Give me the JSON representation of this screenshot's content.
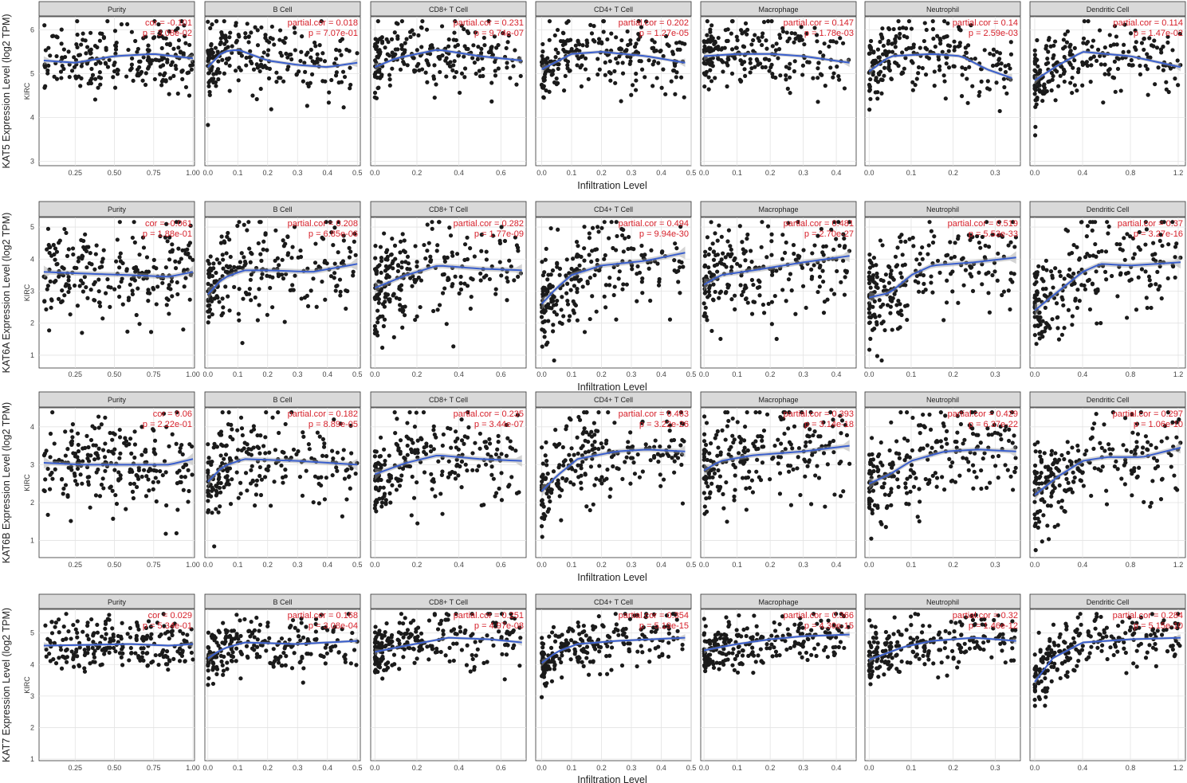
{
  "chart_data": {
    "type": "scatter",
    "cancer_label": "KIRC",
    "xlabel": "Infiltration Level",
    "panel_titles": [
      "Purity",
      "B Cell",
      "CD8+ T Cell",
      "CD4+ T Cell",
      "Macrophage",
      "Neutrophil",
      "Dendritic Cell"
    ],
    "x_ticks": [
      {
        "ticks": [
          0.25,
          0.5,
          0.75,
          1.0
        ],
        "labels": [
          "0.25",
          "0.50",
          "0.75",
          "1.00"
        ],
        "xlim": [
          0.02,
          1.01
        ]
      },
      {
        "ticks": [
          0.0,
          0.1,
          0.2,
          0.3,
          0.4,
          0.5
        ],
        "labels": [
          "0.0",
          "0.1",
          "0.2",
          "0.3",
          "0.4",
          "0.5"
        ],
        "xlim": [
          -0.01,
          0.51
        ]
      },
      {
        "ticks": [
          0.0,
          0.2,
          0.4,
          0.6
        ],
        "labels": [
          "0.0",
          "0.2",
          "0.4",
          "0.6"
        ],
        "xlim": [
          -0.02,
          0.72
        ]
      },
      {
        "ticks": [
          0.0,
          0.1,
          0.2,
          0.3,
          0.4,
          0.5
        ],
        "labels": [
          "0.0",
          "0.1",
          "0.2",
          "0.3",
          "0.4",
          "0.5"
        ],
        "xlim": [
          -0.02,
          0.5
        ]
      },
      {
        "ticks": [
          0.0,
          0.1,
          0.2,
          0.3,
          0.4
        ],
        "labels": [
          "0.0",
          "0.1",
          "0.2",
          "0.3",
          "0.4"
        ],
        "xlim": [
          -0.01,
          0.46
        ]
      },
      {
        "ticks": [
          0.0,
          0.1,
          0.2,
          0.3
        ],
        "labels": [
          "0.0",
          "0.1",
          "0.2",
          "0.3"
        ],
        "xlim": [
          -0.01,
          0.36
        ]
      },
      {
        "ticks": [
          0.0,
          0.4,
          0.8,
          1.2
        ],
        "labels": [
          "0.0",
          "0.4",
          "0.8",
          "1.2"
        ],
        "xlim": [
          -0.04,
          1.26
        ]
      }
    ],
    "rows": [
      {
        "gene": "KAT5",
        "ylabel": "KAT5 Expression Level (log2 TPM)",
        "yticks": [
          3,
          4,
          5,
          6
        ],
        "ylim": [
          2.9,
          6.3
        ],
        "center": 5.4,
        "spread": 0.38,
        "panels": [
          {
            "stat1": "cor = -0.101",
            "stat2": "p = 3.08e-02",
            "curve": [
              [
                0.05,
                5.3
              ],
              [
                0.25,
                5.25
              ],
              [
                0.5,
                5.4
              ],
              [
                0.75,
                5.45
              ],
              [
                1.0,
                5.35
              ]
            ]
          },
          {
            "stat1": "partial.cor = 0.018",
            "stat2": "p = 7.07e-01",
            "curve": [
              [
                0.0,
                5.15
              ],
              [
                0.05,
                5.5
              ],
              [
                0.1,
                5.55
              ],
              [
                0.2,
                5.3
              ],
              [
                0.3,
                5.2
              ],
              [
                0.4,
                5.15
              ],
              [
                0.5,
                5.25
              ]
            ]
          },
          {
            "stat1": "partial.cor = 0.231",
            "stat2": "p = 9.74e-07",
            "curve": [
              [
                0.0,
                5.15
              ],
              [
                0.1,
                5.35
              ],
              [
                0.3,
                5.55
              ],
              [
                0.5,
                5.4
              ],
              [
                0.7,
                5.3
              ]
            ]
          },
          {
            "stat1": "partial.cor = 0.202",
            "stat2": "p = 1.27e-05",
            "curve": [
              [
                0.0,
                5.1
              ],
              [
                0.1,
                5.45
              ],
              [
                0.2,
                5.5
              ],
              [
                0.35,
                5.4
              ],
              [
                0.48,
                5.25
              ]
            ]
          },
          {
            "stat1": "partial.cor = 0.147",
            "stat2": "p = 1.78e-03",
            "curve": [
              [
                0.0,
                5.4
              ],
              [
                0.1,
                5.45
              ],
              [
                0.2,
                5.45
              ],
              [
                0.3,
                5.4
              ],
              [
                0.44,
                5.25
              ]
            ]
          },
          {
            "stat1": "partial.cor = 0.14",
            "stat2": "p = 2.59e-03",
            "curve": [
              [
                0.0,
                5.05
              ],
              [
                0.05,
                5.4
              ],
              [
                0.15,
                5.45
              ],
              [
                0.22,
                5.4
              ],
              [
                0.28,
                5.1
              ],
              [
                0.34,
                4.9
              ]
            ]
          },
          {
            "stat1": "partial.cor = 0.114",
            "stat2": "p = 1.47e-02",
            "curve": [
              [
                0.0,
                4.85
              ],
              [
                0.2,
                5.2
              ],
              [
                0.4,
                5.5
              ],
              [
                0.8,
                5.4
              ],
              [
                1.22,
                5.15
              ]
            ]
          }
        ]
      },
      {
        "gene": "KAT6A",
        "ylabel": "KAT6A Expression Level (log2 TPM)",
        "yticks": [
          1,
          2,
          3,
          4,
          5
        ],
        "ylim": [
          0.6,
          5.3
        ],
        "center": 3.4,
        "spread": 0.75,
        "panels": [
          {
            "stat1": "cor = -0.061",
            "stat2": "p = 1.88e-01",
            "curve": [
              [
                0.05,
                3.6
              ],
              [
                0.3,
                3.55
              ],
              [
                0.6,
                3.5
              ],
              [
                0.85,
                3.45
              ],
              [
                1.0,
                3.6
              ]
            ]
          },
          {
            "stat1": "partial.cor = 0.208",
            "stat2": "p = 6.85e-06",
            "curve": [
              [
                0.0,
                2.9
              ],
              [
                0.05,
                3.4
              ],
              [
                0.12,
                3.65
              ],
              [
                0.2,
                3.65
              ],
              [
                0.35,
                3.6
              ],
              [
                0.5,
                3.85
              ]
            ]
          },
          {
            "stat1": "partial.cor = 0.282",
            "stat2": "p = 1.77e-09",
            "curve": [
              [
                0.0,
                3.1
              ],
              [
                0.15,
                3.5
              ],
              [
                0.3,
                3.8
              ],
              [
                0.5,
                3.7
              ],
              [
                0.7,
                3.65
              ]
            ]
          },
          {
            "stat1": "partial.cor = 0.494",
            "stat2": "p = 9.94e-30",
            "curve": [
              [
                0.0,
                2.6
              ],
              [
                0.05,
                3.1
              ],
              [
                0.1,
                3.5
              ],
              [
                0.2,
                3.8
              ],
              [
                0.35,
                3.95
              ],
              [
                0.48,
                4.2
              ]
            ]
          },
          {
            "stat1": "partial.cor = 0.481",
            "stat2": "p = 2.70e-27",
            "curve": [
              [
                0.0,
                3.2
              ],
              [
                0.05,
                3.5
              ],
              [
                0.15,
                3.65
              ],
              [
                0.3,
                3.9
              ],
              [
                0.44,
                4.1
              ]
            ]
          },
          {
            "stat1": "partial.cor = 0.519",
            "stat2": "p = 5.53e-33",
            "curve": [
              [
                0.0,
                2.8
              ],
              [
                0.05,
                2.95
              ],
              [
                0.1,
                3.5
              ],
              [
                0.15,
                3.8
              ],
              [
                0.25,
                3.9
              ],
              [
                0.35,
                4.05
              ]
            ]
          },
          {
            "stat1": "partial.cor = 0.37",
            "stat2": "p = 3.27e-16",
            "curve": [
              [
                0.0,
                2.4
              ],
              [
                0.2,
                3.0
              ],
              [
                0.4,
                3.6
              ],
              [
                0.55,
                3.85
              ],
              [
                0.8,
                3.8
              ],
              [
                1.22,
                3.9
              ]
            ]
          }
        ]
      },
      {
        "gene": "KAT6B",
        "ylabel": "KAT6B Expression Level (log2 TPM)",
        "yticks": [
          1,
          2,
          3,
          4
        ],
        "ylim": [
          0.55,
          4.5
        ],
        "center": 3.0,
        "spread": 0.6,
        "panels": [
          {
            "stat1": "cor = 0.06",
            "stat2": "p = 2.22e-01",
            "curve": [
              [
                0.05,
                3.05
              ],
              [
                0.3,
                3.0
              ],
              [
                0.6,
                3.0
              ],
              [
                0.85,
                3.0
              ],
              [
                1.0,
                3.15
              ]
            ]
          },
          {
            "stat1": "partial.cor = 0.182",
            "stat2": "p = 8.89e-05",
            "curve": [
              [
                0.0,
                2.55
              ],
              [
                0.05,
                2.95
              ],
              [
                0.12,
                3.15
              ],
              [
                0.3,
                3.1
              ],
              [
                0.5,
                3.0
              ]
            ]
          },
          {
            "stat1": "partial.cor = 0.235",
            "stat2": "p = 3.44e-07",
            "curve": [
              [
                0.0,
                2.75
              ],
              [
                0.15,
                3.05
              ],
              [
                0.3,
                3.25
              ],
              [
                0.5,
                3.15
              ],
              [
                0.7,
                3.1
              ]
            ]
          },
          {
            "stat1": "partial.cor = 0.463",
            "stat2": "p = 3.22e-26",
            "curve": [
              [
                0.0,
                2.3
              ],
              [
                0.05,
                2.7
              ],
              [
                0.12,
                3.15
              ],
              [
                0.25,
                3.35
              ],
              [
                0.35,
                3.4
              ],
              [
                0.48,
                3.35
              ]
            ]
          },
          {
            "stat1": "partial.cor = 0.393",
            "stat2": "p = 3.14e-18",
            "curve": [
              [
                0.0,
                2.85
              ],
              [
                0.05,
                3.1
              ],
              [
                0.15,
                3.25
              ],
              [
                0.3,
                3.35
              ],
              [
                0.44,
                3.5
              ]
            ]
          },
          {
            "stat1": "partial.cor = 0.429",
            "stat2": "p = 6.37e-22",
            "curve": [
              [
                0.0,
                2.5
              ],
              [
                0.05,
                2.75
              ],
              [
                0.1,
                3.1
              ],
              [
                0.18,
                3.35
              ],
              [
                0.26,
                3.4
              ],
              [
                0.35,
                3.35
              ]
            ]
          },
          {
            "stat1": "partial.cor = 0.297",
            "stat2": "p = 1.06e-10",
            "curve": [
              [
                0.0,
                2.2
              ],
              [
                0.2,
                2.7
              ],
              [
                0.4,
                3.1
              ],
              [
                0.6,
                3.2
              ],
              [
                0.9,
                3.2
              ],
              [
                1.22,
                3.45
              ]
            ]
          }
        ]
      },
      {
        "gene": "KAT7",
        "ylabel": "KAT7 Expression Level (log2 TPM)",
        "yticks": [
          1,
          2,
          3,
          4,
          5
        ],
        "ylim": [
          0.95,
          5.75
        ],
        "center": 4.65,
        "spread": 0.42,
        "panels": [
          {
            "stat1": "cor = 0.029",
            "stat2": "p = 5.34e-01",
            "curve": [
              [
                0.05,
                4.6
              ],
              [
                0.3,
                4.62
              ],
              [
                0.6,
                4.65
              ],
              [
                0.85,
                4.6
              ],
              [
                1.0,
                4.65
              ]
            ]
          },
          {
            "stat1": "partial.cor = 0.168",
            "stat2": "p = 3.08e-04",
            "curve": [
              [
                0.0,
                4.2
              ],
              [
                0.05,
                4.5
              ],
              [
                0.12,
                4.7
              ],
              [
                0.3,
                4.65
              ],
              [
                0.5,
                4.75
              ]
            ]
          },
          {
            "stat1": "partial.cor = 0.251",
            "stat2": "p = 4.97e-08",
            "curve": [
              [
                0.0,
                4.4
              ],
              [
                0.15,
                4.6
              ],
              [
                0.35,
                4.85
              ],
              [
                0.55,
                4.8
              ],
              [
                0.7,
                4.7
              ]
            ]
          },
          {
            "stat1": "partial.cor = 0.354",
            "stat2": "p = 5.19e-15",
            "curve": [
              [
                0.0,
                4.05
              ],
              [
                0.05,
                4.4
              ],
              [
                0.12,
                4.65
              ],
              [
                0.25,
                4.75
              ],
              [
                0.48,
                4.85
              ]
            ]
          },
          {
            "stat1": "partial.cor = 0.366",
            "stat2": "p = 4.30e-15",
            "curve": [
              [
                0.0,
                4.45
              ],
              [
                0.1,
                4.65
              ],
              [
                0.2,
                4.8
              ],
              [
                0.3,
                4.9
              ],
              [
                0.44,
                4.95
              ]
            ]
          },
          {
            "stat1": "partial.cor = 0.32",
            "stat2": "p = 1.46e-12",
            "curve": [
              [
                0.0,
                4.15
              ],
              [
                0.08,
                4.55
              ],
              [
                0.15,
                4.75
              ],
              [
                0.25,
                4.85
              ],
              [
                0.35,
                4.75
              ]
            ]
          },
          {
            "stat1": "partial.cor = 0.284",
            "stat2": "p = 5.15e-10",
            "curve": [
              [
                0.0,
                3.45
              ],
              [
                0.15,
                4.2
              ],
              [
                0.4,
                4.7
              ],
              [
                0.8,
                4.8
              ],
              [
                1.22,
                4.85
              ]
            ]
          }
        ]
      }
    ]
  }
}
